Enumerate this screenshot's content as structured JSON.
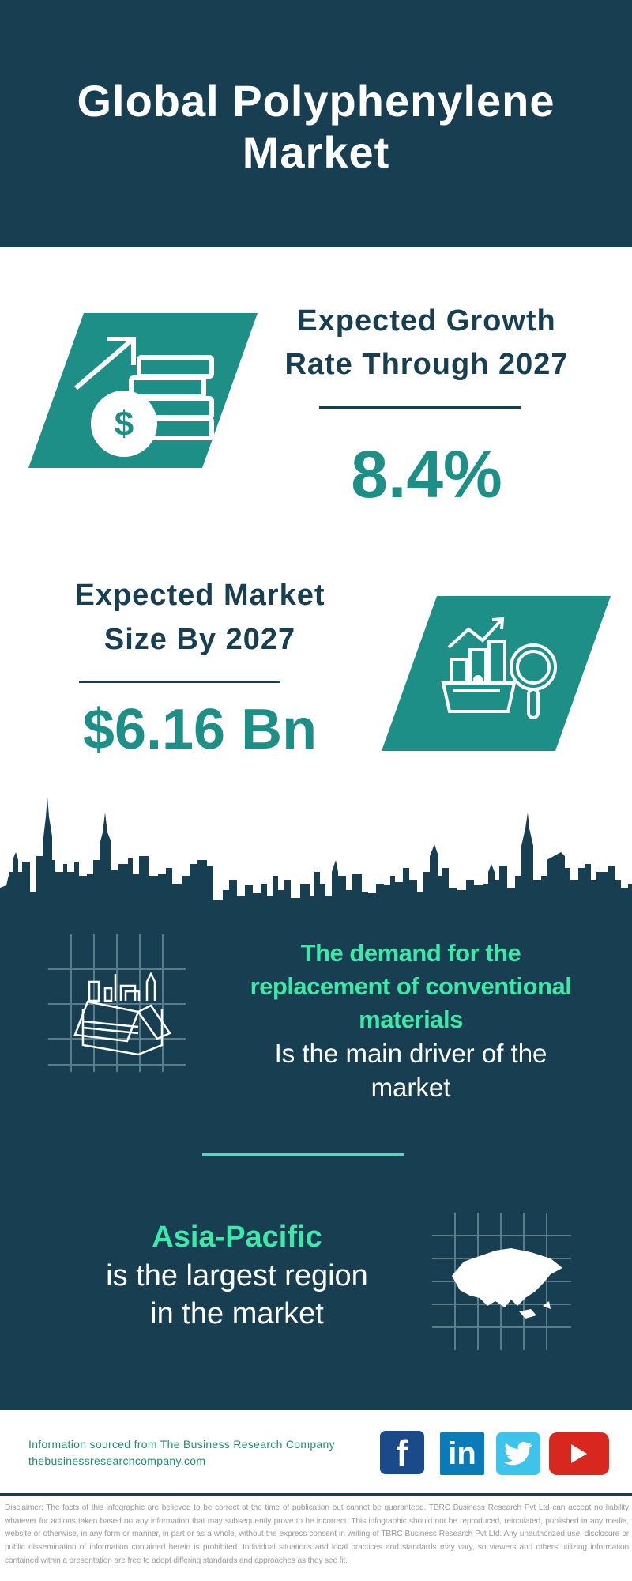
{
  "header": {
    "title_line1": "Global Polyphenylene",
    "title_line2": "Market"
  },
  "growth": {
    "heading_line1": "Expected Growth",
    "heading_line2": "Rate Through 2027",
    "value": "8.4%",
    "icon": "money-growth-icon"
  },
  "market_size": {
    "heading_line1": "Expected Market",
    "heading_line2": "Size By 2027",
    "value": "$6.16 Bn",
    "icon": "market-analysis-icon"
  },
  "driver": {
    "highlight_lines": [
      "The demand for the",
      "replacement of conventional",
      "materials"
    ],
    "text_lines": [
      "Is the main driver of the",
      "market"
    ],
    "icon": "box-icon"
  },
  "region": {
    "highlight": "Asia-Pacific",
    "text_lines": [
      "is the largest region",
      "in the market"
    ],
    "icon": "asia-map-icon"
  },
  "footer": {
    "source": "Information sourced from The Business Research Company",
    "website": "thebusinessresearchcompany.com",
    "social": [
      {
        "name": "facebook",
        "glyph": "f",
        "color": "#1b4a8a"
      },
      {
        "name": "linkedin",
        "glyph": "in",
        "color": "#0a7bb6"
      },
      {
        "name": "twitter",
        "glyph": "twitter-bird",
        "color": "#3ec3ea"
      },
      {
        "name": "youtube",
        "glyph": "play",
        "color": "#d8271f"
      }
    ]
  },
  "disclaimer": "Disclaimer: The facts of this infographic are believed to be correct at the time of publication but cannot be guaranteed. TBRC Business Research Pvt Ltd can accept no liability whatever for actions taken based on any information that may subsequently prove to be incorrect. This infographic should not be reproduced, reirculated, published in any media, website or otherwise, in any form or manner, in part or as a whole, without the express consent in writing of TBRC Business Research Pvt Ltd. Any unauthorized use, disclosure or public dissemination of information contained herein is prohibited. Individual situations and local practices and standards may vary, so viewers and others utilizing information contained within a presentation are free to adopt differing standards and approaches as they see fit.",
  "colors": {
    "navy": "#173f51",
    "teal": "#1e8f86",
    "mint": "#3ee8a8"
  }
}
